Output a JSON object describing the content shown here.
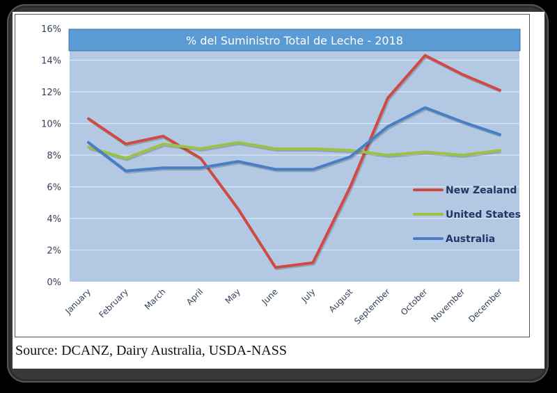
{
  "source_text": "Source: DCANZ, Dairy Australia, USDA-NASS",
  "colors": {
    "plot_bg": "#b3c8e3",
    "title_bg": "#5b9bd5",
    "gridline": "#dde6f2",
    "axis_text": "#333f5a",
    "legend_text": "#1f3864"
  },
  "chart_data": {
    "type": "line",
    "title": "% del Suministro Total de Leche - 2018",
    "xlabel": "",
    "ylabel": "",
    "ylim": [
      0,
      16
    ],
    "yticks": [
      0,
      2,
      4,
      6,
      8,
      10,
      12,
      14,
      16
    ],
    "ytick_labels": [
      "0%",
      "2%",
      "4%",
      "6%",
      "8%",
      "10%",
      "12%",
      "14%",
      "16%"
    ],
    "grid": true,
    "legend_position": "right-middle",
    "categories": [
      "January",
      "February",
      "March",
      "April",
      "May",
      "June",
      "July",
      "August",
      "September",
      "October",
      "November",
      "December"
    ],
    "series": [
      {
        "name": "New Zealand",
        "color": "#d04a44",
        "values": [
          10.3,
          8.7,
          9.2,
          7.8,
          4.6,
          0.9,
          1.2,
          6.0,
          11.6,
          14.3,
          13.1,
          12.1
        ]
      },
      {
        "name": "United States",
        "color": "#9bc244",
        "values": [
          8.5,
          7.8,
          8.7,
          8.4,
          8.8,
          8.4,
          8.4,
          8.3,
          8.0,
          8.2,
          8.0,
          8.3
        ]
      },
      {
        "name": "Australia",
        "color": "#4a7ec4",
        "values": [
          8.8,
          7.0,
          7.2,
          7.2,
          7.6,
          7.1,
          7.1,
          7.9,
          9.8,
          11.0,
          10.1,
          9.3
        ]
      }
    ]
  }
}
